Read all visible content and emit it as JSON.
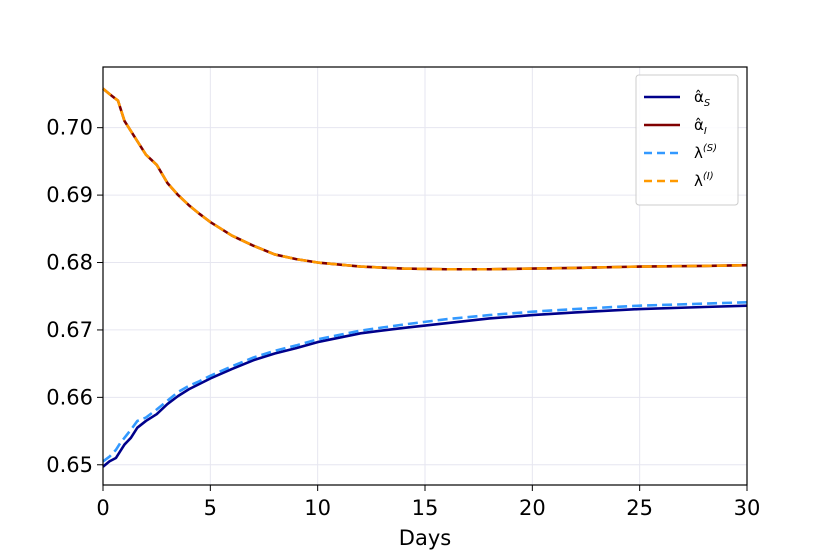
{
  "chart_data": {
    "type": "line",
    "title": "",
    "xlabel": "Days",
    "ylabel": "",
    "xlim": [
      0,
      30
    ],
    "ylim": [
      0.647,
      0.709
    ],
    "xticks": [
      0,
      5,
      10,
      15,
      20,
      25,
      30
    ],
    "xtick_labels": [
      "0",
      "5",
      "10",
      "15",
      "20",
      "25",
      "30"
    ],
    "yticks": [
      0.65,
      0.66,
      0.67,
      0.68,
      0.69,
      0.7
    ],
    "ytick_labels": [
      "0.65",
      "0.66",
      "0.67",
      "0.68",
      "0.69",
      "0.70"
    ],
    "grid": true,
    "legend_position": "top-right",
    "series": [
      {
        "name": "α̂_S",
        "legend_base": "α̂",
        "legend_sub": "S",
        "color": "#00008b",
        "style": "solid",
        "x": [
          0,
          0.3,
          0.6,
          0.8,
          1.0,
          1.3,
          1.6,
          2.0,
          2.5,
          3.0,
          3.5,
          4.0,
          4.5,
          5.0,
          6.0,
          7.0,
          8.0,
          9.0,
          10.0,
          12.0,
          14.0,
          16.0,
          18.0,
          20.0,
          22.0,
          25.0,
          28.0,
          30.0
        ],
        "y": [
          0.6497,
          0.6505,
          0.651,
          0.652,
          0.653,
          0.654,
          0.6555,
          0.6565,
          0.6575,
          0.659,
          0.6602,
          0.6612,
          0.662,
          0.6628,
          0.6642,
          0.6655,
          0.6665,
          0.6673,
          0.6682,
          0.6695,
          0.6703,
          0.671,
          0.6717,
          0.6722,
          0.6726,
          0.6731,
          0.6734,
          0.6736
        ]
      },
      {
        "name": "α̂_I",
        "legend_base": "α̂",
        "legend_sub": "I",
        "color": "#800000",
        "style": "solid",
        "x": [
          0,
          0.3,
          0.7,
          1.0,
          1.5,
          2.0,
          2.5,
          3.0,
          3.5,
          4.0,
          4.5,
          5.0,
          6.0,
          7.0,
          8.0,
          9.0,
          10.0,
          12.0,
          14.0,
          16.0,
          18.0,
          20.0,
          22.0,
          25.0,
          28.0,
          30.0
        ],
        "y": [
          0.7058,
          0.705,
          0.704,
          0.701,
          0.6985,
          0.696,
          0.6945,
          0.6918,
          0.69,
          0.6885,
          0.6872,
          0.686,
          0.684,
          0.6825,
          0.6812,
          0.6805,
          0.68,
          0.6794,
          0.6791,
          0.679,
          0.679,
          0.6791,
          0.6792,
          0.6794,
          0.6795,
          0.6796
        ]
      },
      {
        "name": "λ^(S)",
        "legend_base": "λ",
        "legend_sup": "(S)",
        "color": "#3399ff",
        "style": "dashed",
        "x": [
          0,
          0.3,
          0.6,
          0.8,
          1.0,
          1.3,
          1.6,
          2.0,
          2.5,
          3.0,
          3.5,
          4.0,
          4.5,
          5.0,
          6.0,
          7.0,
          8.0,
          9.0,
          10.0,
          12.0,
          14.0,
          16.0,
          18.0,
          20.0,
          22.0,
          25.0,
          28.0,
          30.0
        ],
        "y": [
          0.6505,
          0.6512,
          0.6522,
          0.6532,
          0.654,
          0.6552,
          0.6565,
          0.657,
          0.6582,
          0.6595,
          0.6608,
          0.6617,
          0.6624,
          0.6632,
          0.6646,
          0.6659,
          0.6669,
          0.6677,
          0.6686,
          0.6699,
          0.6708,
          0.6716,
          0.6722,
          0.6727,
          0.6731,
          0.6736,
          0.6739,
          0.6741
        ]
      },
      {
        "name": "λ^(I)",
        "legend_base": "λ",
        "legend_sup": "(I)",
        "color": "#ff9900",
        "style": "dashed",
        "x": [
          0,
          0.3,
          0.7,
          1.0,
          1.5,
          2.0,
          2.5,
          3.0,
          3.5,
          4.0,
          4.5,
          5.0,
          6.0,
          7.0,
          8.0,
          9.0,
          10.0,
          12.0,
          14.0,
          16.0,
          18.0,
          20.0,
          22.0,
          25.0,
          28.0,
          30.0
        ],
        "y": [
          0.7058,
          0.705,
          0.704,
          0.701,
          0.6985,
          0.696,
          0.6945,
          0.6918,
          0.69,
          0.6885,
          0.6872,
          0.686,
          0.684,
          0.6825,
          0.6812,
          0.6805,
          0.68,
          0.6794,
          0.6791,
          0.679,
          0.679,
          0.6791,
          0.6792,
          0.6794,
          0.6795,
          0.6796
        ]
      }
    ]
  }
}
